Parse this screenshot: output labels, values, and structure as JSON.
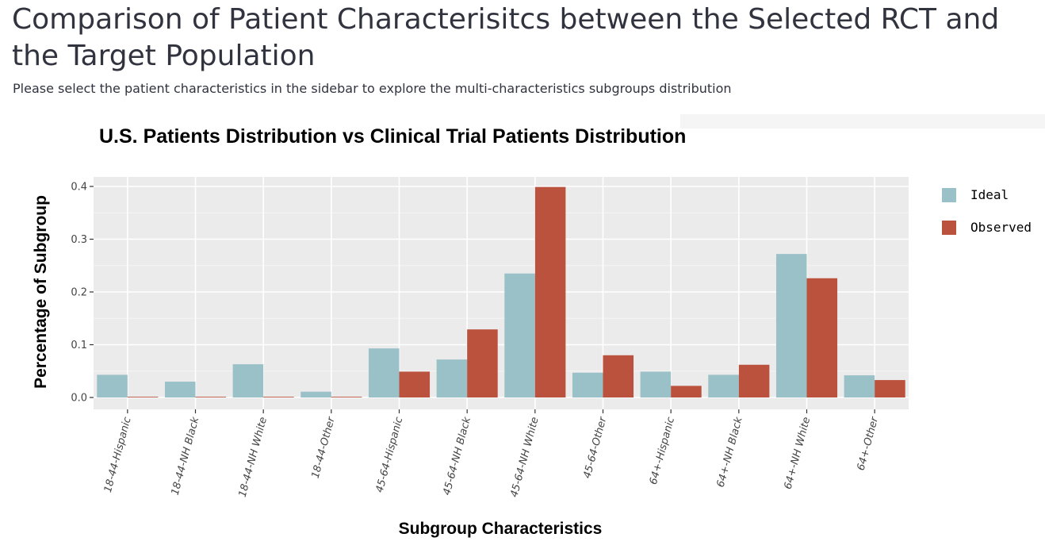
{
  "page": {
    "title": "Comparison of Patient Characterisitcs between the Selected RCT and the Target Population",
    "subtitle": "Please select the patient characteristics in the sidebar to explore the multi-characteristics subgroups distribution"
  },
  "colors": {
    "ideal": "#9bc1c8",
    "observed": "#bb523e",
    "panel": "#ebebeb",
    "grid": "#ffffff"
  },
  "chart_data": {
    "type": "bar",
    "title": "U.S. Patients Distribution vs Clinical Trial Patients Distribution",
    "xlabel": "Subgroup Characteristics",
    "ylabel": "Percentage of Subgroup",
    "ylim": [
      0,
      0.4
    ],
    "yticks": [
      "0.0",
      "0.1",
      "0.2",
      "0.3",
      "0.4"
    ],
    "legend_position": "right",
    "grid": true,
    "categories": [
      "18-44-Hispanic",
      "18-44-NH Black",
      "18-44-NH White",
      "18-44-Other",
      "45-64-Hispanic",
      "45-64-NH Black",
      "45-64-NH White",
      "45-64-Other",
      "64+-Hispanic",
      "64+-NH Black",
      "64+-NH White",
      "64+-Other"
    ],
    "series": [
      {
        "name": "Ideal",
        "color": "#9bc1c8",
        "values": [
          0.043,
          0.03,
          0.063,
          0.011,
          0.093,
          0.072,
          0.235,
          0.047,
          0.049,
          0.043,
          0.272,
          0.042
        ]
      },
      {
        "name": "Observed",
        "color": "#bb523e",
        "values": [
          0.001,
          0.0,
          0.0,
          0.001,
          0.049,
          0.129,
          0.399,
          0.08,
          0.022,
          0.062,
          0.226,
          0.033
        ]
      }
    ]
  }
}
